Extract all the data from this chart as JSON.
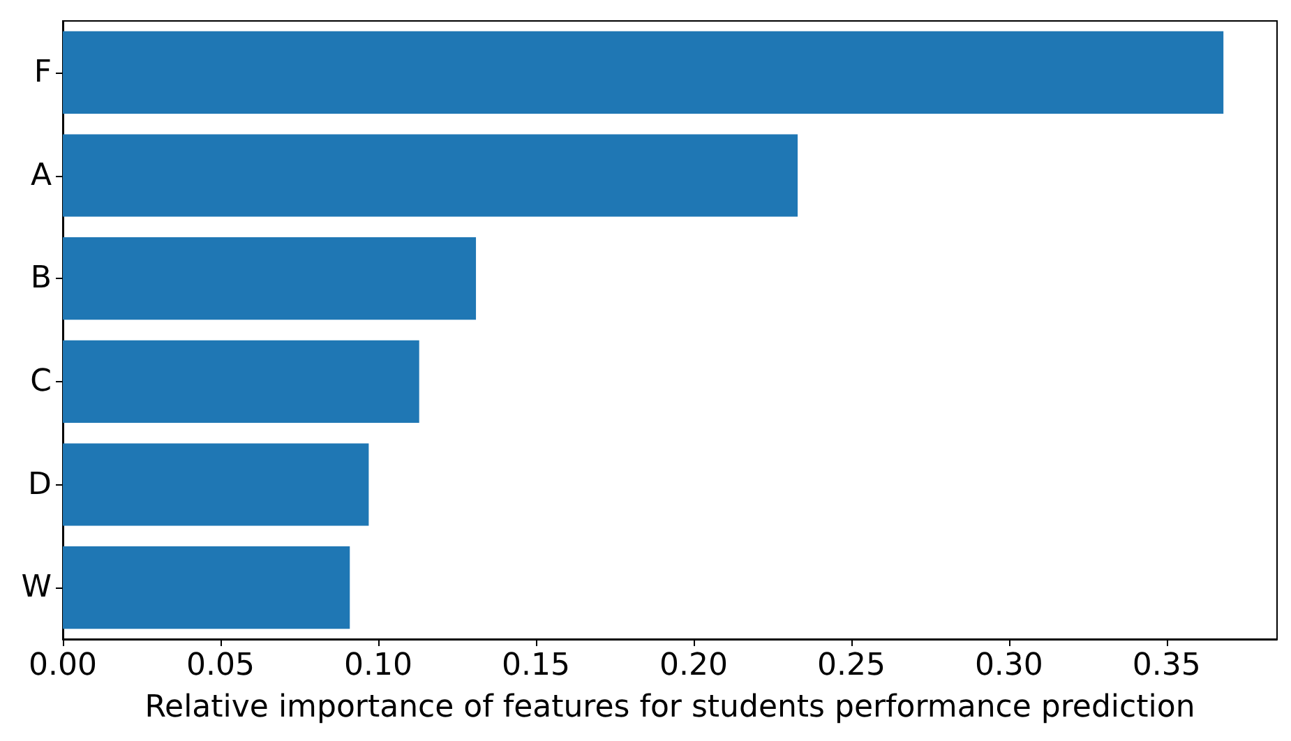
{
  "chart_data": {
    "type": "bar",
    "orientation": "horizontal",
    "xlabel": "Relative importance of features for students performance prediction",
    "categories": [
      "F",
      "A",
      "B",
      "C",
      "D",
      "W"
    ],
    "values": [
      0.368,
      0.233,
      0.131,
      0.113,
      0.097,
      0.091
    ],
    "color": "#1f77b4",
    "xlim": [
      0,
      0.385
    ],
    "xticks": [
      {
        "value": 0,
        "label": "0.00"
      },
      {
        "value": 0.05,
        "label": "0.05"
      },
      {
        "value": 0.1,
        "label": "0.10"
      },
      {
        "value": 0.15,
        "label": "0.15"
      },
      {
        "value": 0.2,
        "label": "0.20"
      },
      {
        "value": 0.25,
        "label": "0.25"
      },
      {
        "value": 0.3,
        "label": "0.30"
      },
      {
        "value": 0.35,
        "label": "0.35"
      }
    ],
    "grid": false
  }
}
